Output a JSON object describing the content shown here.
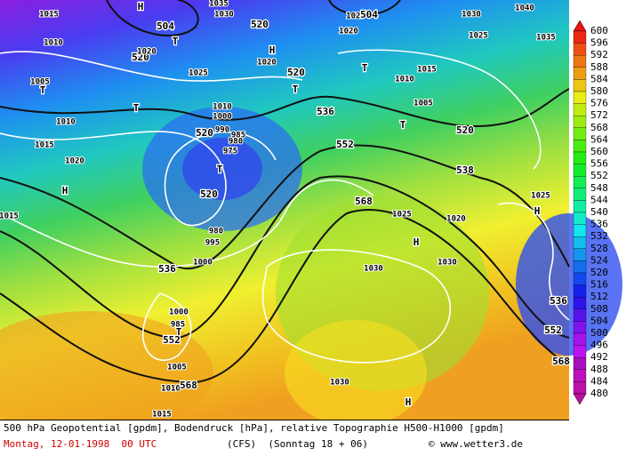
{
  "map": {
    "labels": [
      "H",
      "504",
      "T",
      "520",
      "1015",
      "1010",
      "1020",
      "1025",
      "1030",
      "1035",
      "520",
      "H",
      "1020",
      "520",
      "T",
      "1025",
      "504",
      "1020",
      "T",
      "1015",
      "1010",
      "1005",
      "536",
      "552",
      "T",
      "520",
      "538",
      "1030",
      "1025",
      "1040",
      "1035",
      "T",
      "1005",
      "1010",
      "1015",
      "1020",
      "H",
      "T",
      "520",
      "975",
      "T",
      "520",
      "980",
      "995",
      "1000",
      "536",
      "568",
      "1025",
      "1020",
      "H",
      "1030",
      "1030",
      "1025",
      "H",
      "536",
      "552",
      "568",
      "1000",
      "985",
      "T",
      "552",
      "1005",
      "1010",
      "568",
      "1015",
      "1030",
      "H",
      "1015",
      "1010",
      "1000",
      "990",
      "985",
      "980"
    ]
  },
  "legend": {
    "labels": [
      600,
      596,
      592,
      588,
      584,
      580,
      576,
      572,
      568,
      564,
      560,
      556,
      552,
      548,
      544,
      540,
      536,
      532,
      528,
      524,
      520,
      516,
      512,
      508,
      504,
      500,
      496,
      492,
      488,
      484,
      480
    ]
  },
  "footer": {
    "line1": "500 hPa Geopotential [gpdm], Bodendruck [hPa], relative Topographie H500-H1000 [gpdm]",
    "date": "Montag, 12-01-1998  00 UTC",
    "run": "(CFS)  (Sonntag 18 + 06)",
    "source": "© www.wetter3.de"
  }
}
